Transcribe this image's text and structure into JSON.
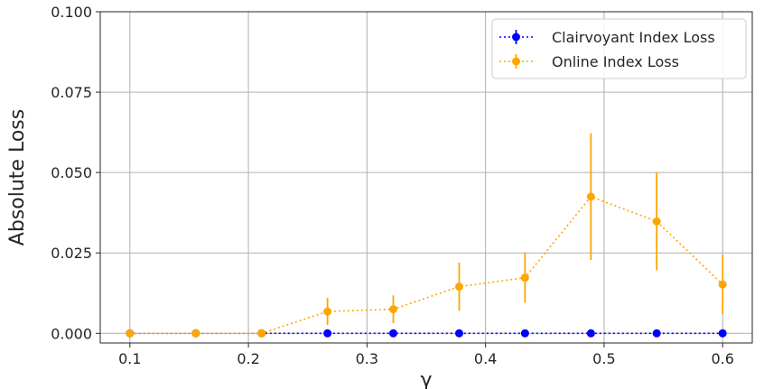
{
  "chart_data": {
    "type": "line",
    "title": "",
    "xlabel": "γ",
    "ylabel": "Absolute Loss",
    "xlim": [
      0.075,
      0.625
    ],
    "ylim": [
      -0.003,
      0.1
    ],
    "x_ticks": [
      0.1,
      0.2,
      0.3,
      0.4,
      0.5,
      0.6
    ],
    "x_tick_labels": [
      "0.1",
      "0.2",
      "0.3",
      "0.4",
      "0.5",
      "0.6"
    ],
    "y_ticks": [
      0.0,
      0.025,
      0.05,
      0.075,
      0.1
    ],
    "y_tick_labels": [
      "0.000",
      "0.025",
      "0.050",
      "0.075",
      "0.100"
    ],
    "grid": true,
    "legend": "top-right",
    "x": [
      0.1,
      0.1556,
      0.2111,
      0.2667,
      0.3222,
      0.3778,
      0.4333,
      0.4889,
      0.5444,
      0.6
    ],
    "series": [
      {
        "name": "Clairvoyant Index Loss",
        "color": "#0000ff",
        "values": [
          0,
          0,
          0,
          0,
          0,
          0,
          0,
          0,
          0,
          0
        ],
        "errors": [
          0,
          0,
          0,
          0,
          0,
          0,
          0,
          0,
          0,
          0
        ]
      },
      {
        "name": "Online Index Loss",
        "color": "#ffa500",
        "values": [
          0,
          0,
          0,
          0.0068,
          0.0075,
          0.0145,
          0.0173,
          0.0425,
          0.0348,
          0.0152
        ],
        "errors": [
          0,
          0,
          0,
          0.0042,
          0.0043,
          0.0075,
          0.0078,
          0.0197,
          0.0152,
          0.0092
        ]
      }
    ]
  }
}
